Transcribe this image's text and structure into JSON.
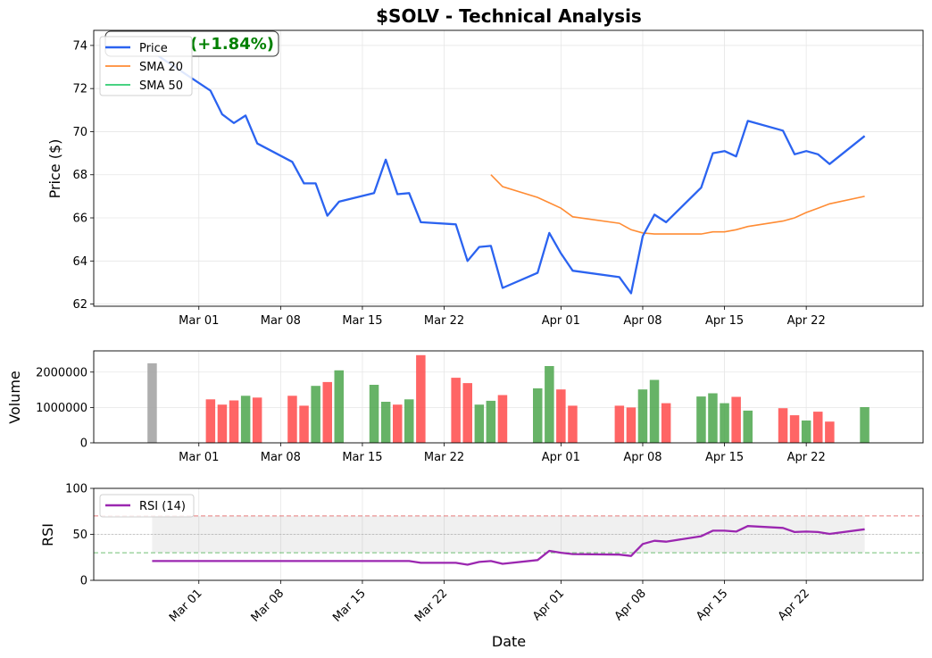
{
  "title": "$SOLV - Technical Analysis",
  "colors": {
    "price": "#2b63f0",
    "sma20": "#ff8c34",
    "sma50": "#2ecc71",
    "volume_up": "#4ca64c",
    "volume_down": "#ff4a4a",
    "volume_neutral": "#a0a0a0",
    "rsi": "#9b27b0",
    "overbought": "#e05a5a",
    "oversold": "#4caf50",
    "change_text": "#008000"
  },
  "change_badge": {
    "text": "(+1.84%)"
  },
  "chart_data": [
    {
      "type": "line",
      "panel": "price",
      "ylabel": "Price ($)",
      "ylim": [
        61.9,
        74.7
      ],
      "yticks": [
        62,
        64,
        66,
        68,
        70,
        72,
        74
      ],
      "grid": true,
      "legend": [
        "Price",
        "SMA 20",
        "SMA 50"
      ],
      "legend_placement": "top-left",
      "series": [
        {
          "name": "Price",
          "points": [
            [
              "2024-02-26",
              73.7
            ],
            [
              "2024-03-02",
              71.9
            ],
            [
              "2024-03-03",
              70.8
            ],
            [
              "2024-03-04",
              70.4
            ],
            [
              "2024-03-05",
              70.75
            ],
            [
              "2024-03-06",
              69.45
            ],
            [
              "2024-03-09",
              68.6
            ],
            [
              "2024-03-10",
              67.6
            ],
            [
              "2024-03-11",
              67.6
            ],
            [
              "2024-03-12",
              66.1
            ],
            [
              "2024-03-13",
              66.75
            ],
            [
              "2024-03-16",
              67.15
            ],
            [
              "2024-03-17",
              68.7
            ],
            [
              "2024-03-18",
              67.1
            ],
            [
              "2024-03-19",
              67.15
            ],
            [
              "2024-03-20",
              65.8
            ],
            [
              "2024-03-23",
              65.7
            ],
            [
              "2024-03-24",
              64.0
            ],
            [
              "2024-03-25",
              64.65
            ],
            [
              "2024-03-26",
              64.7
            ],
            [
              "2024-03-27",
              62.75
            ],
            [
              "2024-03-30",
              63.45
            ],
            [
              "2024-03-31",
              65.3
            ],
            [
              "2024-04-01",
              64.35
            ],
            [
              "2024-04-02",
              63.55
            ],
            [
              "2024-04-06",
              63.25
            ],
            [
              "2024-04-07",
              62.5
            ],
            [
              "2024-04-08",
              65.15
            ],
            [
              "2024-04-09",
              66.15
            ],
            [
              "2024-04-10",
              65.8
            ],
            [
              "2024-04-13",
              67.4
            ],
            [
              "2024-04-14",
              69.0
            ],
            [
              "2024-04-15",
              69.1
            ],
            [
              "2024-04-16",
              68.85
            ],
            [
              "2024-04-17",
              70.5
            ],
            [
              "2024-04-20",
              70.05
            ],
            [
              "2024-04-21",
              68.95
            ],
            [
              "2024-04-22",
              69.1
            ],
            [
              "2024-04-23",
              68.95
            ],
            [
              "2024-04-24",
              68.5
            ],
            [
              "2024-04-27",
              69.8
            ]
          ]
        },
        {
          "name": "SMA 20",
          "points": [
            [
              "2024-03-26",
              68.0
            ],
            [
              "2024-03-27",
              67.45
            ],
            [
              "2024-03-30",
              66.95
            ],
            [
              "2024-03-31",
              66.7
            ],
            [
              "2024-04-01",
              66.45
            ],
            [
              "2024-04-02",
              66.05
            ],
            [
              "2024-04-06",
              65.75
            ],
            [
              "2024-04-07",
              65.45
            ],
            [
              "2024-04-08",
              65.3
            ],
            [
              "2024-04-09",
              65.25
            ],
            [
              "2024-04-10",
              65.25
            ],
            [
              "2024-04-13",
              65.25
            ],
            [
              "2024-04-14",
              65.35
            ],
            [
              "2024-04-15",
              65.35
            ],
            [
              "2024-04-16",
              65.45
            ],
            [
              "2024-04-17",
              65.6
            ],
            [
              "2024-04-20",
              65.85
            ],
            [
              "2024-04-21",
              66.0
            ],
            [
              "2024-04-22",
              66.25
            ],
            [
              "2024-04-23",
              66.45
            ],
            [
              "2024-04-24",
              66.65
            ],
            [
              "2024-04-27",
              67.0
            ]
          ]
        },
        {
          "name": "SMA 50",
          "points": []
        }
      ]
    },
    {
      "type": "bar",
      "panel": "volume",
      "ylabel": "Volume",
      "ylim": [
        0,
        2600000
      ],
      "yticks": [
        0,
        1000000,
        2000000
      ],
      "grid": true,
      "bars": [
        [
          "2024-02-26",
          2250000,
          "neutral"
        ],
        [
          "2024-03-02",
          1230000,
          "down"
        ],
        [
          "2024-03-03",
          1080000,
          "down"
        ],
        [
          "2024-03-04",
          1200000,
          "down"
        ],
        [
          "2024-03-05",
          1330000,
          "up"
        ],
        [
          "2024-03-06",
          1280000,
          "down"
        ],
        [
          "2024-03-09",
          1330000,
          "down"
        ],
        [
          "2024-03-10",
          1050000,
          "down"
        ],
        [
          "2024-03-11",
          1610000,
          "up"
        ],
        [
          "2024-03-12",
          1720000,
          "down"
        ],
        [
          "2024-03-13",
          2050000,
          "up"
        ],
        [
          "2024-03-16",
          1640000,
          "up"
        ],
        [
          "2024-03-17",
          1160000,
          "up"
        ],
        [
          "2024-03-18",
          1080000,
          "down"
        ],
        [
          "2024-03-19",
          1230000,
          "up"
        ],
        [
          "2024-03-20",
          2480000,
          "down"
        ],
        [
          "2024-03-23",
          1840000,
          "down"
        ],
        [
          "2024-03-24",
          1690000,
          "down"
        ],
        [
          "2024-03-25",
          1080000,
          "up"
        ],
        [
          "2024-03-26",
          1190000,
          "up"
        ],
        [
          "2024-03-27",
          1350000,
          "down"
        ],
        [
          "2024-03-30",
          1540000,
          "up"
        ],
        [
          "2024-03-31",
          2170000,
          "up"
        ],
        [
          "2024-04-01",
          1510000,
          "down"
        ],
        [
          "2024-04-02",
          1050000,
          "down"
        ],
        [
          "2024-04-06",
          1050000,
          "down"
        ],
        [
          "2024-04-07",
          1000000,
          "down"
        ],
        [
          "2024-04-08",
          1510000,
          "up"
        ],
        [
          "2024-04-09",
          1780000,
          "up"
        ],
        [
          "2024-04-10",
          1120000,
          "down"
        ],
        [
          "2024-04-13",
          1310000,
          "up"
        ],
        [
          "2024-04-14",
          1400000,
          "up"
        ],
        [
          "2024-04-15",
          1120000,
          "up"
        ],
        [
          "2024-04-16",
          1300000,
          "down"
        ],
        [
          "2024-04-17",
          910000,
          "up"
        ],
        [
          "2024-04-20",
          980000,
          "down"
        ],
        [
          "2024-04-21",
          780000,
          "down"
        ],
        [
          "2024-04-22",
          630000,
          "up"
        ],
        [
          "2024-04-23",
          880000,
          "down"
        ],
        [
          "2024-04-24",
          600000,
          "down"
        ],
        [
          "2024-04-27",
          1010000,
          "up"
        ]
      ]
    },
    {
      "type": "line",
      "panel": "rsi",
      "ylabel": "RSI",
      "xlabel": "Date",
      "ylim": [
        0,
        100
      ],
      "yticks": [
        0,
        50,
        100
      ],
      "overbought": 70,
      "oversold": 30,
      "midline": 50,
      "grid": true,
      "legend": [
        "RSI (14)"
      ],
      "legend_placement": "top-left",
      "series": [
        {
          "name": "RSI (14)",
          "points": [
            [
              "2024-02-26",
              21
            ],
            [
              "2024-03-19",
              21
            ],
            [
              "2024-03-20",
              19
            ],
            [
              "2024-03-23",
              19
            ],
            [
              "2024-03-24",
              17
            ],
            [
              "2024-03-25",
              20
            ],
            [
              "2024-03-26",
              21
            ],
            [
              "2024-03-27",
              18
            ],
            [
              "2024-03-30",
              22
            ],
            [
              "2024-03-31",
              32
            ],
            [
              "2024-04-01",
              30
            ],
            [
              "2024-04-02",
              28.5
            ],
            [
              "2024-04-06",
              28
            ],
            [
              "2024-04-07",
              26.5
            ],
            [
              "2024-04-08",
              39.5
            ],
            [
              "2024-04-09",
              43
            ],
            [
              "2024-04-10",
              42
            ],
            [
              "2024-04-13",
              48
            ],
            [
              "2024-04-14",
              54
            ],
            [
              "2024-04-15",
              54
            ],
            [
              "2024-04-16",
              53
            ],
            [
              "2024-04-17",
              59
            ],
            [
              "2024-04-20",
              57
            ],
            [
              "2024-04-21",
              52.5
            ],
            [
              "2024-04-22",
              53
            ],
            [
              "2024-04-23",
              52.5
            ],
            [
              "2024-04-24",
              50.5
            ],
            [
              "2024-04-27",
              55.5
            ]
          ]
        }
      ]
    }
  ],
  "x_axis": {
    "ticks": [
      [
        "2024-03-01",
        "Mar 01"
      ],
      [
        "2024-03-08",
        "Mar 08"
      ],
      [
        "2024-03-15",
        "Mar 15"
      ],
      [
        "2024-03-22",
        "Mar 22"
      ],
      [
        "2024-04-01",
        "Apr 01"
      ],
      [
        "2024-04-08",
        "Apr 08"
      ],
      [
        "2024-04-15",
        "Apr 15"
      ],
      [
        "2024-04-22",
        "Apr 22"
      ]
    ],
    "range": [
      "2024-02-21",
      "2024-05-02"
    ]
  }
}
